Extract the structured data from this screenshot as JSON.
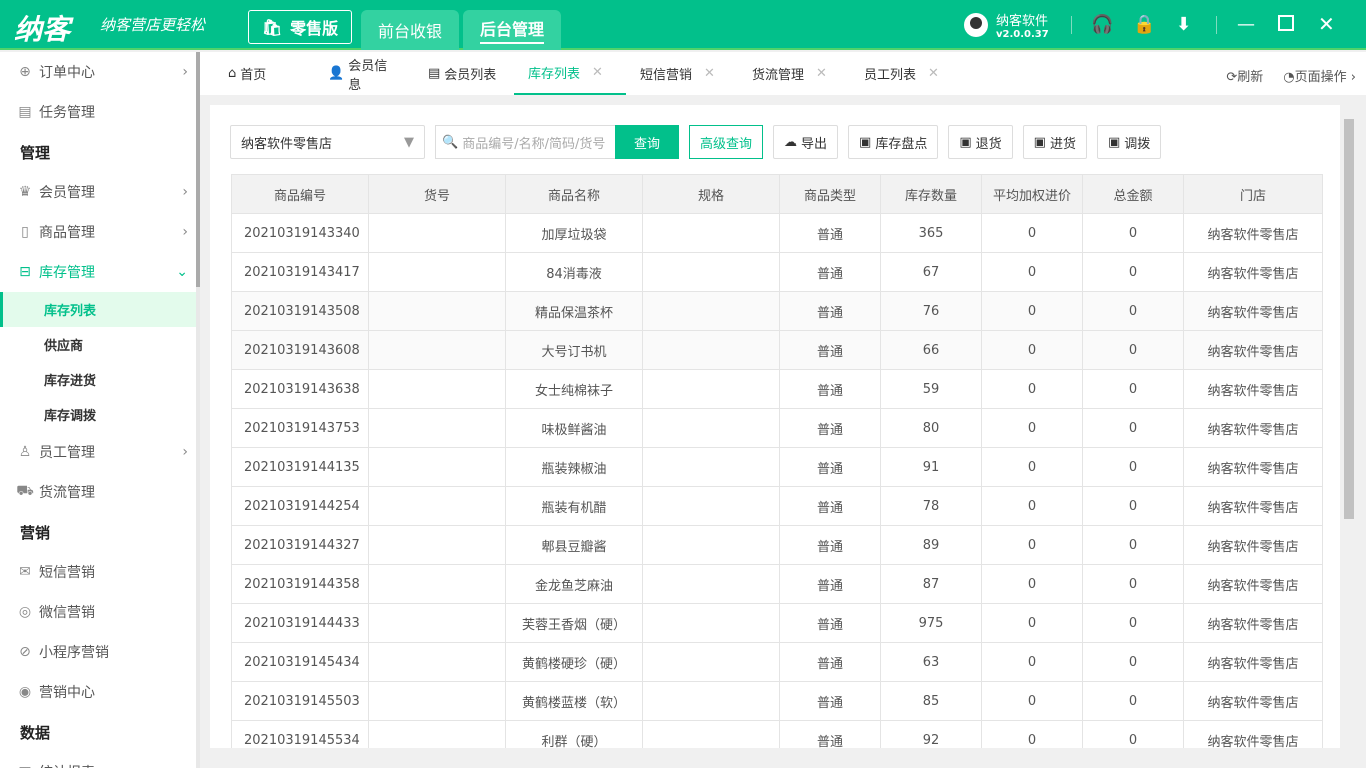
{
  "header": {
    "logo": "纳客",
    "slogan": "纳客营店更轻松",
    "edition": "零售版",
    "tabs": [
      "前台收银",
      "后台管理"
    ],
    "active_tab": 1,
    "user": "纳客软件",
    "version": "v2.0.0.37",
    "accent": "#02c08b"
  },
  "sidebar": {
    "items": [
      {
        "type": "item",
        "label": "订单中心",
        "icon": "globe-icon",
        "chev": "›"
      },
      {
        "type": "item",
        "label": "任务管理",
        "icon": "task-icon"
      },
      {
        "type": "group",
        "label": "管理"
      },
      {
        "type": "item",
        "label": "会员管理",
        "icon": "crown-icon",
        "chev": "›"
      },
      {
        "type": "item",
        "label": "商品管理",
        "icon": "goods-icon",
        "chev": "›"
      },
      {
        "type": "item",
        "label": "库存管理",
        "icon": "inventory-icon",
        "chev": "⌄",
        "open": true
      },
      {
        "type": "sub",
        "label": "库存列表",
        "active": true
      },
      {
        "type": "sub",
        "label": "供应商"
      },
      {
        "type": "sub",
        "label": "库存进货"
      },
      {
        "type": "sub",
        "label": "库存调拨"
      },
      {
        "type": "item",
        "label": "员工管理",
        "icon": "user-icon",
        "chev": "›"
      },
      {
        "type": "item",
        "label": "货流管理",
        "icon": "truck-icon"
      },
      {
        "type": "group",
        "label": "营销"
      },
      {
        "type": "item",
        "label": "短信营销",
        "icon": "mail-icon"
      },
      {
        "type": "item",
        "label": "微信营销",
        "icon": "wechat-icon"
      },
      {
        "type": "item",
        "label": "小程序营销",
        "icon": "miniapp-icon"
      },
      {
        "type": "item",
        "label": "营销中心",
        "icon": "target-icon"
      },
      {
        "type": "group",
        "label": "数据"
      },
      {
        "type": "item",
        "label": "统计报表",
        "icon": "report-icon",
        "chev": "›"
      }
    ]
  },
  "tabs": {
    "items": [
      {
        "label": "首页",
        "icon": "⌂"
      },
      {
        "label": "会员信息",
        "icon": "👤"
      },
      {
        "label": "会员列表",
        "icon": "▤"
      },
      {
        "label": "库存列表",
        "closable": true,
        "active": true
      },
      {
        "label": "短信营销",
        "closable": true
      },
      {
        "label": "货流管理",
        "closable": true
      },
      {
        "label": "员工列表",
        "closable": true
      }
    ],
    "refresh": "刷新",
    "page_ops": "页面操作"
  },
  "toolbar": {
    "store": "纳客软件零售店",
    "search_placeholder": "商品编号/名称/简码/货号",
    "query": "查询",
    "advanced": "高级查询",
    "export": "导出",
    "stocktake": "库存盘点",
    "return": "退货",
    "purchase": "进货",
    "transfer": "调拨"
  },
  "table": {
    "columns": [
      "商品编号",
      "货号",
      "商品名称",
      "规格",
      "商品类型",
      "库存数量",
      "平均加权进价",
      "总金额",
      "门店"
    ],
    "rows": [
      [
        "20210319143340",
        "",
        "加厚垃圾袋",
        "",
        "普通",
        "365",
        "0",
        "0",
        "纳客软件零售店"
      ],
      [
        "20210319143417",
        "",
        "84消毒液",
        "",
        "普通",
        "67",
        "0",
        "0",
        "纳客软件零售店"
      ],
      [
        "20210319143508",
        "",
        "精品保温茶杯",
        "",
        "普通",
        "76",
        "0",
        "0",
        "纳客软件零售店"
      ],
      [
        "20210319143608",
        "",
        "大号订书机",
        "",
        "普通",
        "66",
        "0",
        "0",
        "纳客软件零售店"
      ],
      [
        "20210319143638",
        "",
        "女士纯棉袜子",
        "",
        "普通",
        "59",
        "0",
        "0",
        "纳客软件零售店"
      ],
      [
        "20210319143753",
        "",
        "味极鲜酱油",
        "",
        "普通",
        "80",
        "0",
        "0",
        "纳客软件零售店"
      ],
      [
        "20210319144135",
        "",
        "瓶装辣椒油",
        "",
        "普通",
        "91",
        "0",
        "0",
        "纳客软件零售店"
      ],
      [
        "20210319144254",
        "",
        "瓶装有机醋",
        "",
        "普通",
        "78",
        "0",
        "0",
        "纳客软件零售店"
      ],
      [
        "20210319144327",
        "",
        "郫县豆瓣酱",
        "",
        "普通",
        "89",
        "0",
        "0",
        "纳客软件零售店"
      ],
      [
        "20210319144358",
        "",
        "金龙鱼芝麻油",
        "",
        "普通",
        "87",
        "0",
        "0",
        "纳客软件零售店"
      ],
      [
        "20210319144433",
        "",
        "芙蓉王香烟（硬）",
        "",
        "普通",
        "975",
        "0",
        "0",
        "纳客软件零售店"
      ],
      [
        "20210319145434",
        "",
        "黄鹤楼硬珍（硬）",
        "",
        "普通",
        "63",
        "0",
        "0",
        "纳客软件零售店"
      ],
      [
        "20210319145503",
        "",
        "黄鹤楼蓝楼（软）",
        "",
        "普通",
        "85",
        "0",
        "0",
        "纳客软件零售店"
      ],
      [
        "20210319145534",
        "",
        "利群（硬）",
        "",
        "普通",
        "92",
        "0",
        "0",
        "纳客软件零售店"
      ]
    ]
  }
}
